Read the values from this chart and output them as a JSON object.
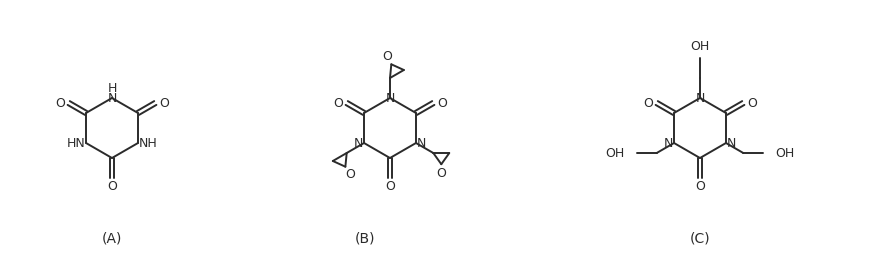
{
  "bg_color": "#ffffff",
  "text_color": "#2b2b2b",
  "line_color": "#2b2b2b",
  "label_A": "(A)",
  "label_B": "(B)",
  "label_C": "(C)",
  "figsize": [
    8.7,
    2.71
  ],
  "dpi": 100
}
